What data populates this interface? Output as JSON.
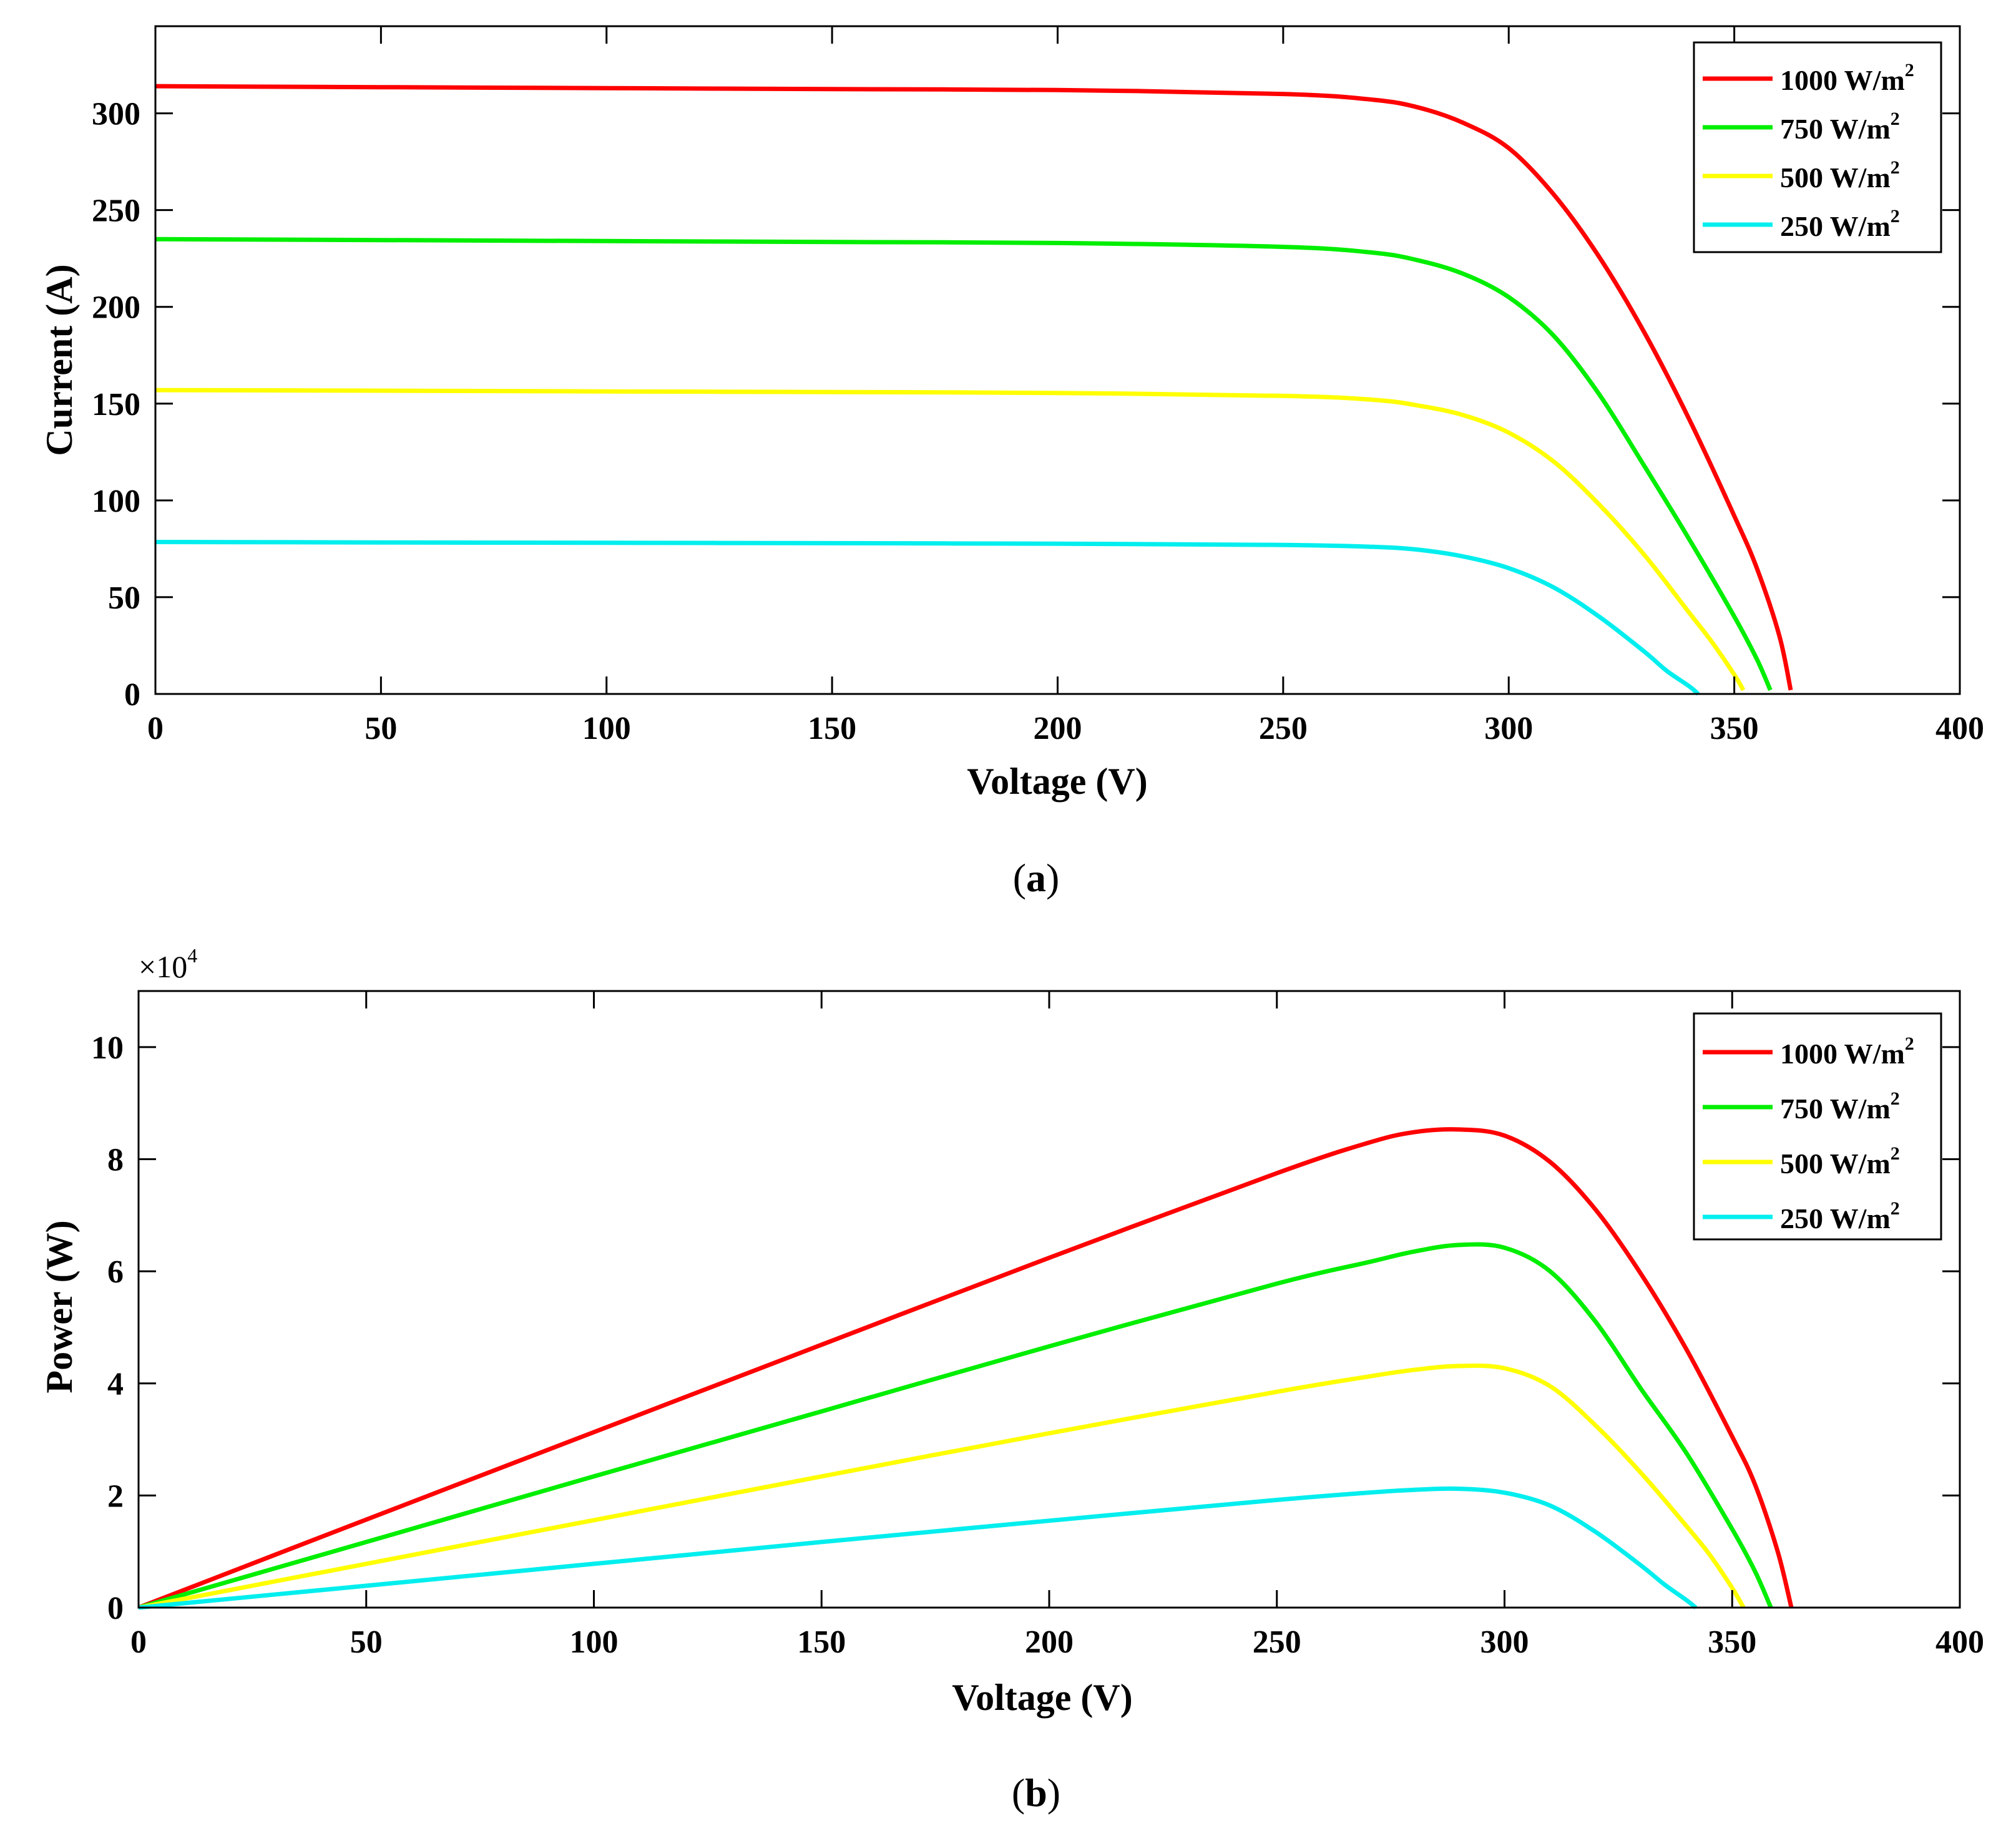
{
  "chart_data": [
    {
      "type": "line",
      "panel": "a",
      "caption": {
        "open": "(",
        "letter": "a",
        "close": ")"
      },
      "xlabel": "Voltage (V)",
      "ylabel": "Current (A)",
      "xlim": [
        0,
        400
      ],
      "ylim": [
        0,
        345
      ],
      "xticks": [
        "0",
        "50",
        "100",
        "150",
        "200",
        "250",
        "300",
        "350",
        "400"
      ],
      "yticks": [
        "0",
        "50",
        "100",
        "150",
        "200",
        "250",
        "300"
      ],
      "legend_position": "top-right",
      "series": [
        {
          "name": "1000 W/m",
          "sup": "2",
          "color": "#ff0000",
          "x": [
            0,
            50,
            100,
            150,
            200,
            250,
            270,
            280,
            290,
            300,
            310,
            320,
            330,
            340,
            350,
            355,
            360,
            362.5
          ],
          "y": [
            314,
            313.5,
            313,
            312.5,
            312,
            310,
            307,
            303,
            295,
            282,
            258,
            226,
            187,
            142,
            92,
            65,
            30,
            2
          ]
        },
        {
          "name": "750 W/m",
          "sup": "2",
          "color": "#00ee00",
          "x": [
            0,
            50,
            100,
            150,
            200,
            250,
            270,
            280,
            290,
            300,
            310,
            320,
            330,
            340,
            350,
            355,
            358
          ],
          "y": [
            235,
            234.5,
            234,
            233.5,
            233,
            231,
            228,
            224,
            217,
            205,
            185,
            155,
            118,
            80,
            40,
            18,
            2
          ]
        },
        {
          "name": "500 W/m",
          "sup": "2",
          "color": "#ffff00",
          "x": [
            0,
            50,
            100,
            150,
            200,
            250,
            270,
            280,
            290,
            300,
            310,
            320,
            330,
            340,
            345,
            350,
            352
          ],
          "y": [
            157,
            156.7,
            156.3,
            156,
            155.5,
            154,
            152,
            149,
            144,
            135,
            120,
            98,
            72,
            42,
            27,
            10,
            2
          ]
        },
        {
          "name": "250 W/m",
          "sup": "2",
          "color": "#00eeee",
          "x": [
            0,
            50,
            100,
            150,
            200,
            250,
            270,
            280,
            290,
            300,
            310,
            320,
            330,
            335,
            340,
            342
          ],
          "y": [
            78.5,
            78.3,
            78.1,
            77.9,
            77.6,
            77,
            76,
            74.5,
            71,
            65,
            55,
            40,
            22,
            12,
            4,
            0
          ]
        }
      ]
    },
    {
      "type": "line",
      "panel": "b",
      "caption": {
        "open": "(",
        "letter": "b",
        "close": ")"
      },
      "xlabel": "Voltage (V)",
      "ylabel": "Power (W)",
      "exponent": {
        "prefix": "×10",
        "power": "4"
      },
      "xlim": [
        0,
        400
      ],
      "ylim": [
        0,
        11
      ],
      "units_note": "y values in units of 10^4 W",
      "xticks": [
        "0",
        "50",
        "100",
        "150",
        "200",
        "250",
        "300",
        "350",
        "400"
      ],
      "yticks": [
        "0",
        "2",
        "4",
        "6",
        "8",
        "10"
      ],
      "legend_position": "top-right",
      "series": [
        {
          "name": "1000 W/m",
          "sup": "2",
          "color": "#ff0000",
          "x": [
            0,
            50,
            100,
            150,
            200,
            250,
            270,
            280,
            290,
            300,
            310,
            320,
            330,
            340,
            350,
            355,
            360,
            363
          ],
          "y": [
            0,
            1.57,
            3.13,
            4.69,
            6.24,
            7.75,
            8.29,
            8.48,
            8.53,
            8.42,
            7.95,
            7.1,
            5.95,
            4.6,
            3.05,
            2.2,
            1.0,
            0
          ]
        },
        {
          "name": "750 W/m",
          "sup": "2",
          "color": "#00ee00",
          "x": [
            0,
            50,
            100,
            150,
            200,
            250,
            270,
            280,
            290,
            300,
            310,
            320,
            330,
            340,
            350,
            355,
            358.5
          ],
          "y": [
            0,
            1.17,
            2.34,
            3.5,
            4.66,
            5.78,
            6.16,
            6.35,
            6.47,
            6.42,
            6.0,
            5.1,
            3.9,
            2.75,
            1.4,
            0.65,
            0
          ]
        },
        {
          "name": "500 W/m",
          "sup": "2",
          "color": "#ffff00",
          "x": [
            0,
            50,
            100,
            150,
            200,
            250,
            270,
            280,
            290,
            300,
            310,
            320,
            330,
            340,
            345,
            350,
            352.5
          ],
          "y": [
            0,
            0.78,
            1.56,
            2.34,
            3.11,
            3.85,
            4.12,
            4.24,
            4.31,
            4.27,
            3.95,
            3.25,
            2.4,
            1.45,
            0.95,
            0.35,
            0
          ]
        },
        {
          "name": "250 W/m",
          "sup": "2",
          "color": "#00eeee",
          "x": [
            0,
            50,
            100,
            150,
            200,
            250,
            270,
            280,
            290,
            300,
            310,
            320,
            330,
            335,
            340,
            342
          ],
          "y": [
            0,
            0.39,
            0.78,
            1.17,
            1.55,
            1.92,
            2.05,
            2.1,
            2.12,
            2.05,
            1.82,
            1.35,
            0.75,
            0.42,
            0.13,
            0
          ]
        }
      ]
    }
  ]
}
